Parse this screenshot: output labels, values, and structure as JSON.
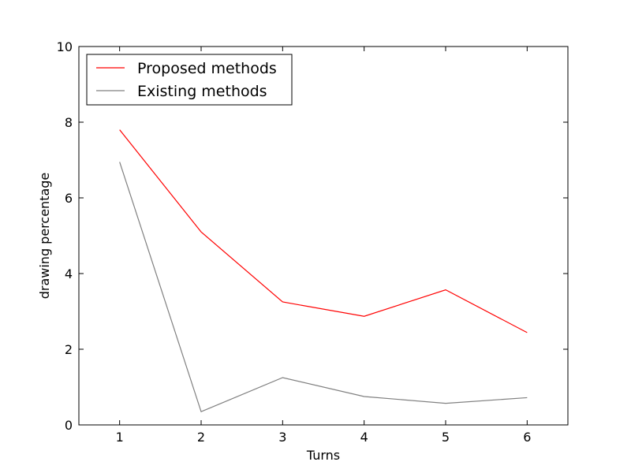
{
  "chart_data": {
    "type": "line",
    "xlabel": "Turns",
    "ylabel": "drawing percentage",
    "x": [
      1,
      2,
      3,
      4,
      5,
      6
    ],
    "xlim": [
      0.5,
      6.5
    ],
    "ylim": [
      0,
      10
    ],
    "xticks": [
      "1",
      "2",
      "3",
      "4",
      "5",
      "6"
    ],
    "yticks": [
      "0",
      "2",
      "4",
      "6",
      "8",
      "10"
    ],
    "grid": false,
    "legend_position": "top-left",
    "series": [
      {
        "name": "Proposed methods",
        "color": "#ff0000",
        "values": [
          7.8,
          5.1,
          3.25,
          2.87,
          3.57,
          2.44
        ]
      },
      {
        "name": "Existing methods",
        "color": "#808080",
        "values": [
          6.95,
          0.35,
          1.25,
          0.75,
          0.57,
          0.72
        ]
      }
    ]
  }
}
